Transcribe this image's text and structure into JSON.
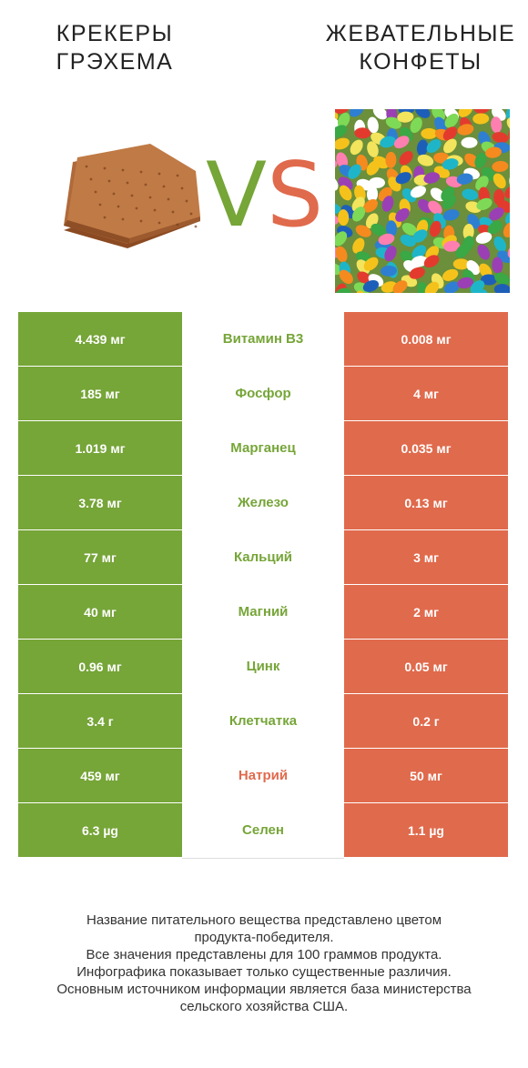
{
  "header": {
    "left_title_line1": "КРЕКЕРЫ",
    "left_title_line2": "ГРЭХЕМА",
    "right_title_line1": "ЖЕВАТЕЛЬНЫЕ",
    "right_title_line2": "КОНФЕТЫ",
    "vs_v": "V",
    "vs_s": "S"
  },
  "colors": {
    "winner_left": "#76a538",
    "winner_right": "#e06a4c"
  },
  "rows": [
    {
      "left": "4.439 мг",
      "nutrient": "Витамин B3",
      "right": "0.008 мг",
      "winner": "left"
    },
    {
      "left": "185 мг",
      "nutrient": "Фосфор",
      "right": "4 мг",
      "winner": "left"
    },
    {
      "left": "1.019 мг",
      "nutrient": "Марганец",
      "right": "0.035 мг",
      "winner": "left"
    },
    {
      "left": "3.78 мг",
      "nutrient": "Железо",
      "right": "0.13 мг",
      "winner": "left"
    },
    {
      "left": "77 мг",
      "nutrient": "Кальций",
      "right": "3 мг",
      "winner": "left"
    },
    {
      "left": "40 мг",
      "nutrient": "Магний",
      "right": "2 мг",
      "winner": "left"
    },
    {
      "left": "0.96 мг",
      "nutrient": "Цинк",
      "right": "0.05 мг",
      "winner": "left"
    },
    {
      "left": "3.4 г",
      "nutrient": "Клетчатка",
      "right": "0.2 г",
      "winner": "left"
    },
    {
      "left": "459 мг",
      "nutrient": "Натрий",
      "right": "50 мг",
      "winner": "right"
    },
    {
      "left": "6.3 µg",
      "nutrient": "Селен",
      "right": "1.1 µg",
      "winner": "left"
    }
  ],
  "footer": {
    "line1": "Название питательного вещества представлено цветом",
    "line2": "продукта-победителя.",
    "line3": "Все значения представлены для 100 граммов продукта.",
    "line4": "Инфографика показывает только существенные различия.",
    "line5": "Основным источником информации является база министерства",
    "line6": "сельского хозяйства США."
  }
}
